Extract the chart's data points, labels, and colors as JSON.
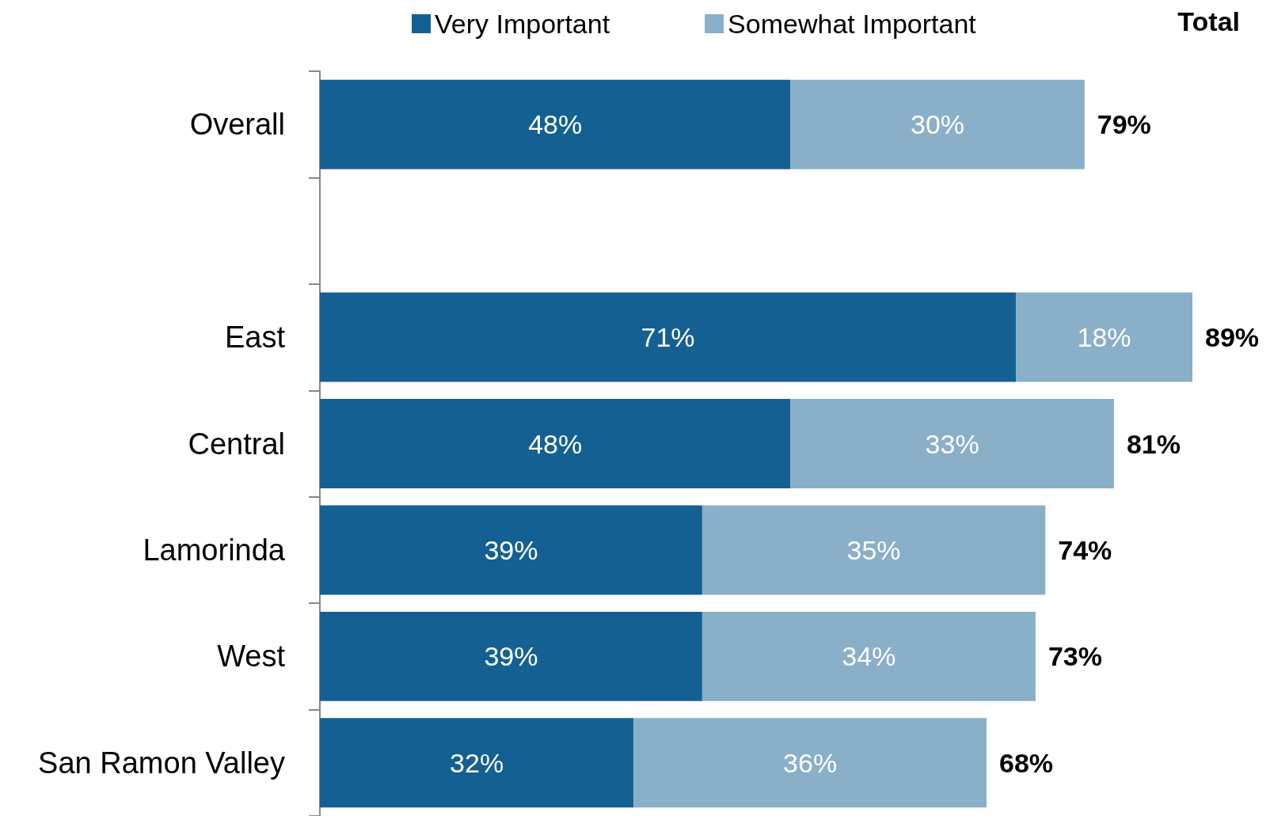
{
  "chart_data": {
    "type": "bar",
    "orientation": "horizontal",
    "stacked": true,
    "legend": "top",
    "grid": false,
    "categories": [
      "Overall",
      null,
      "East",
      "Central",
      "Lamorinda",
      "West",
      "San Ramon Valley"
    ],
    "series": [
      {
        "name": "Very Important",
        "color": "#156092",
        "values": [
          48,
          null,
          71,
          48,
          39,
          39,
          32
        ],
        "value_labels": [
          "48%",
          null,
          "71%",
          "48%",
          "39%",
          "39%",
          "32%"
        ]
      },
      {
        "name": "Somewhat Important",
        "color": "#8aafc8",
        "values": [
          30,
          null,
          18,
          33,
          35,
          34,
          36
        ],
        "value_labels": [
          "30%",
          null,
          "18%",
          "33%",
          "35%",
          "34%",
          "36%"
        ]
      }
    ],
    "totals": [
      "79%",
      null,
      "89%",
      "81%",
      "74%",
      "73%",
      "68%"
    ],
    "annotations": [
      "Total"
    ]
  }
}
